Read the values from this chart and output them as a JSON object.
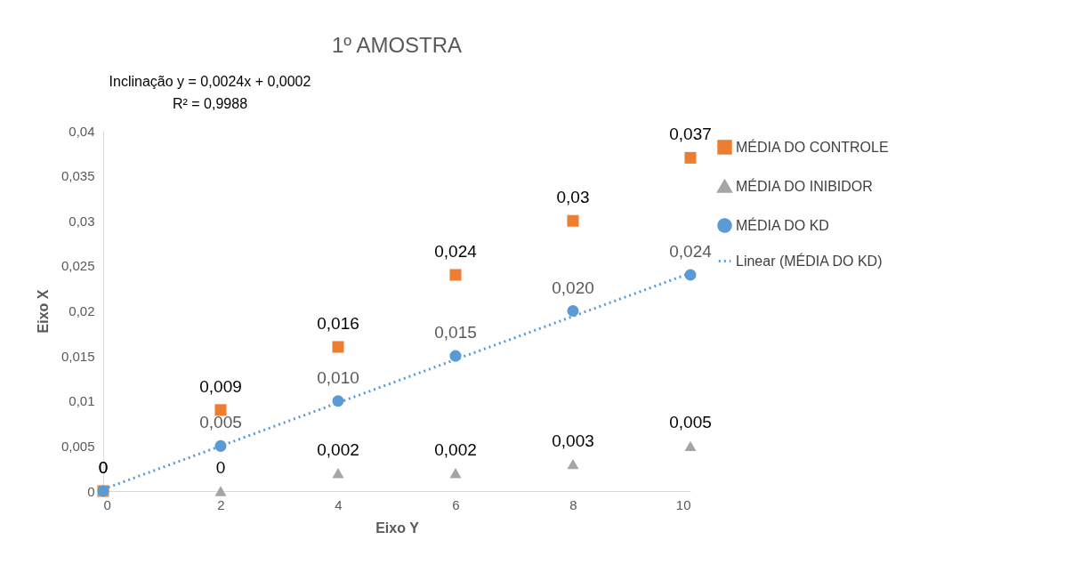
{
  "chart_data": {
    "type": "scatter",
    "title": "1º AMOSTRA",
    "xlabel": "Eixo Y",
    "ylabel": "Eixo X",
    "annotations": [
      "Inclinação y = 0,0024x + 0,0002",
      "R² = 0,9988"
    ],
    "x": [
      0,
      2,
      4,
      6,
      8,
      10
    ],
    "series": [
      {
        "name": "MÉDIA DO CONTROLE",
        "color": "#ed7d31",
        "marker": "square",
        "values": [
          0,
          0.009,
          0.016,
          0.024,
          0.03,
          0.037
        ],
        "value_labels": [
          "0",
          "0,009",
          "0,016",
          "0,024",
          "0,03",
          "0,037"
        ]
      },
      {
        "name": "MÉDIA DO INIBIDOR",
        "color": "#a5a5a5",
        "marker": "triangle",
        "values": [
          0,
          0,
          0.002,
          0.002,
          0.003,
          0.005
        ],
        "value_labels": [
          "0",
          "0",
          "0,002",
          "0,002",
          "0,003",
          "0,005"
        ]
      },
      {
        "name": "MÉDIA DO KD",
        "color": "#5b9bd5",
        "marker": "circle",
        "values": [
          0,
          0.005,
          0.01,
          0.015,
          0.02,
          0.024
        ],
        "value_labels": [
          null,
          "0,005",
          "0,010",
          "0,015",
          "0,020",
          "0,024"
        ]
      },
      {
        "name": "Linear (MÉDIA DO KD)",
        "type": "line",
        "color": "#5b9bd5",
        "line_style": "dotted",
        "marker": "none",
        "x": [
          0,
          10
        ],
        "values": [
          0.0002,
          0.0242
        ]
      }
    ],
    "xlim": [
      0,
      10
    ],
    "xticks": [
      0,
      2,
      4,
      6,
      8,
      10
    ],
    "ylim": [
      0,
      0.04
    ],
    "yticks": [
      0,
      {
        "value": 0.005,
        "label": "0,005"
      },
      {
        "value": 0.01,
        "label": "0,01"
      },
      {
        "value": 0.015,
        "label": "0,015"
      },
      {
        "value": 0.02,
        "label": "0,02"
      },
      {
        "value": 0.025,
        "label": "0,025"
      },
      {
        "value": 0.03,
        "label": "0,03"
      },
      {
        "value": 0.035,
        "label": "0,035"
      },
      {
        "value": 0.04,
        "label": "0,04"
      }
    ],
    "grid": false,
    "legend": "right"
  }
}
